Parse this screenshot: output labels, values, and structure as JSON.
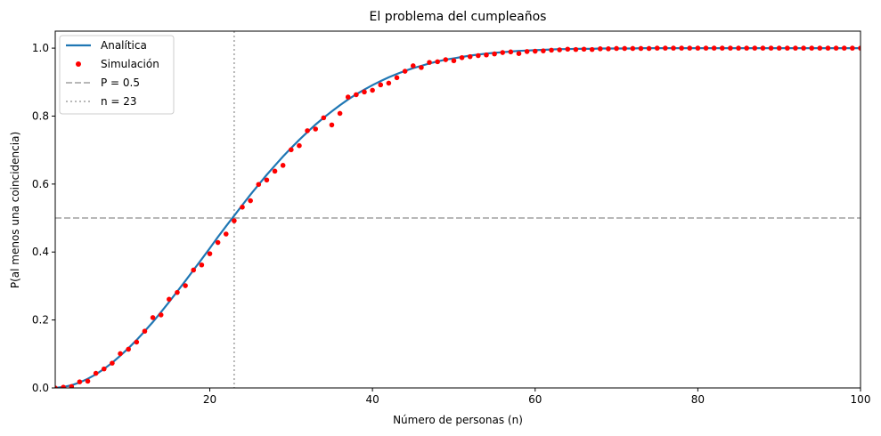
{
  "chart_data": {
    "type": "line",
    "title": "El problema del cumpleaños",
    "xlabel": "Número de personas (n)",
    "ylabel": "P(al menos una coincidencia)",
    "xlim": [
      1,
      100
    ],
    "ylim": [
      0,
      1.05
    ],
    "xticks": [
      20,
      40,
      60,
      80,
      100
    ],
    "yticks": [
      0.0,
      0.2,
      0.4,
      0.6,
      0.8,
      1.0
    ],
    "xtick_labels": [
      "20",
      "40",
      "60",
      "80",
      "100"
    ],
    "ytick_labels": [
      "0.0",
      "0.2",
      "0.4",
      "0.6",
      "0.8",
      "1.0"
    ],
    "grid": false,
    "legend_position": "top-left",
    "series": [
      {
        "name": "Analítica",
        "type": "line",
        "color": "#1f77b4",
        "x": [
          1,
          2,
          3,
          4,
          5,
          6,
          7,
          8,
          9,
          10,
          11,
          12,
          13,
          14,
          15,
          16,
          17,
          18,
          19,
          20,
          21,
          22,
          23,
          24,
          25,
          26,
          27,
          28,
          29,
          30,
          31,
          32,
          33,
          34,
          35,
          36,
          37,
          38,
          39,
          40,
          41,
          42,
          43,
          44,
          45,
          46,
          47,
          48,
          49,
          50,
          51,
          52,
          53,
          54,
          55,
          56,
          57,
          58,
          59,
          60,
          61,
          62,
          63,
          64,
          65,
          66,
          67,
          68,
          69,
          70,
          71,
          72,
          73,
          74,
          75,
          76,
          77,
          78,
          79,
          80,
          81,
          82,
          83,
          84,
          85,
          86,
          87,
          88,
          89,
          90,
          91,
          92,
          93,
          94,
          95,
          96,
          97,
          98,
          99,
          100
        ],
        "y": [
          0.0,
          0.003,
          0.008,
          0.016,
          0.027,
          0.04,
          0.056,
          0.074,
          0.095,
          0.117,
          0.141,
          0.167,
          0.194,
          0.223,
          0.253,
          0.284,
          0.315,
          0.347,
          0.379,
          0.411,
          0.444,
          0.476,
          0.507,
          0.538,
          0.569,
          0.598,
          0.627,
          0.654,
          0.681,
          0.706,
          0.73,
          0.753,
          0.775,
          0.795,
          0.814,
          0.832,
          0.849,
          0.864,
          0.878,
          0.891,
          0.903,
          0.914,
          0.924,
          0.933,
          0.941,
          0.948,
          0.955,
          0.961,
          0.966,
          0.97,
          0.974,
          0.978,
          0.981,
          0.984,
          0.986,
          0.988,
          0.99,
          0.992,
          0.993,
          0.994,
          0.995,
          0.996,
          0.997,
          0.997,
          0.998,
          0.998,
          0.998,
          0.999,
          0.999,
          0.999,
          0.999,
          0.999,
          1.0,
          1.0,
          1.0,
          1.0,
          1.0,
          1.0,
          1.0,
          1.0,
          1.0,
          1.0,
          1.0,
          1.0,
          1.0,
          1.0,
          1.0,
          1.0,
          1.0,
          1.0,
          1.0,
          1.0,
          1.0,
          1.0,
          1.0,
          1.0,
          1.0,
          1.0,
          1.0,
          1.0
        ]
      },
      {
        "name": "Simulación",
        "type": "scatter",
        "color": "#ff0000",
        "x": [
          1,
          2,
          3,
          4,
          5,
          6,
          7,
          8,
          9,
          10,
          11,
          12,
          13,
          14,
          15,
          16,
          17,
          18,
          19,
          20,
          21,
          22,
          23,
          24,
          25,
          26,
          27,
          28,
          29,
          30,
          31,
          32,
          33,
          34,
          35,
          36,
          37,
          38,
          39,
          40,
          41,
          42,
          43,
          44,
          45,
          46,
          47,
          48,
          49,
          50,
          51,
          52,
          53,
          54,
          55,
          56,
          57,
          58,
          59,
          60,
          61,
          62,
          63,
          64,
          65,
          66,
          67,
          68,
          69,
          70,
          71,
          72,
          73,
          74,
          75,
          76,
          77,
          78,
          79,
          80,
          81,
          82,
          83,
          84,
          85,
          86,
          87,
          88,
          89,
          90,
          91,
          92,
          93,
          94,
          95,
          96,
          97,
          98,
          99,
          100
        ],
        "y": [
          0.0,
          0.002,
          0.004,
          0.018,
          0.02,
          0.043,
          0.056,
          0.073,
          0.101,
          0.114,
          0.135,
          0.167,
          0.207,
          0.215,
          0.261,
          0.281,
          0.301,
          0.347,
          0.362,
          0.395,
          0.428,
          0.453,
          0.492,
          0.532,
          0.551,
          0.599,
          0.612,
          0.638,
          0.655,
          0.701,
          0.713,
          0.757,
          0.762,
          0.795,
          0.774,
          0.808,
          0.856,
          0.863,
          0.871,
          0.876,
          0.892,
          0.897,
          0.913,
          0.932,
          0.948,
          0.943,
          0.958,
          0.96,
          0.966,
          0.963,
          0.972,
          0.975,
          0.978,
          0.98,
          0.983,
          0.987,
          0.989,
          0.984,
          0.99,
          0.991,
          0.992,
          0.994,
          0.995,
          0.997,
          0.996,
          0.997,
          0.996,
          0.998,
          0.998,
          0.999,
          0.999,
          0.999,
          0.999,
          0.999,
          1.0,
          1.0,
          1.0,
          1.0,
          1.0,
          1.0,
          1.0,
          1.0,
          1.0,
          1.0,
          1.0,
          1.0,
          1.0,
          1.0,
          1.0,
          1.0,
          1.0,
          1.0,
          1.0,
          1.0,
          1.0,
          1.0,
          1.0,
          1.0,
          1.0,
          1.0
        ]
      }
    ],
    "reference_lines": [
      {
        "name": "P = 0.5",
        "orientation": "horizontal",
        "value": 0.5,
        "color": "#a0a0a0",
        "style": "dashed"
      },
      {
        "name": "n = 23",
        "orientation": "vertical",
        "value": 23,
        "color": "#a0a0a0",
        "style": "dotted"
      }
    ]
  }
}
